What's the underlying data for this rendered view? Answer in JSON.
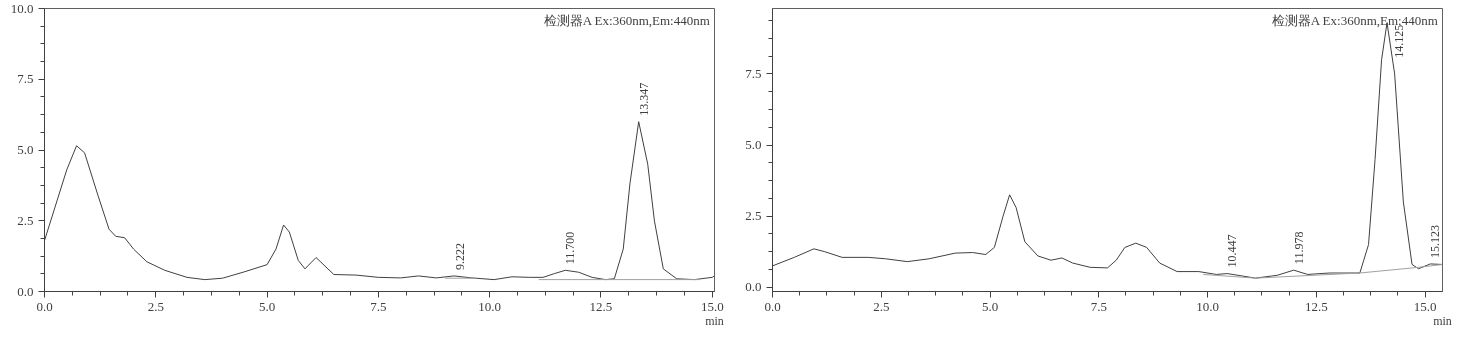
{
  "chart_data": [
    {
      "type": "line",
      "subtitle": "检测器A Ex:360nm,Em:440nm",
      "xlabel": "min",
      "xlim": [
        0,
        15.05
      ],
      "ylim": [
        0,
        10
      ],
      "xticks": [
        {
          "value": 0,
          "label": "0.0"
        },
        {
          "value": 2.5,
          "label": "2.5"
        },
        {
          "value": 5,
          "label": "5.0"
        },
        {
          "value": 7.5,
          "label": "7.5"
        },
        {
          "value": 10,
          "label": "10.0"
        },
        {
          "value": 12.5,
          "label": "12.5"
        },
        {
          "value": 15,
          "label": "15.0"
        }
      ],
      "yticks": [
        {
          "value": 0,
          "label": "0.0"
        },
        {
          "value": 2.5,
          "label": "2.5"
        },
        {
          "value": 5,
          "label": "5.0"
        },
        {
          "value": 7.5,
          "label": "7.5"
        },
        {
          "value": 10,
          "label": "10.0"
        }
      ],
      "series": [
        {
          "color": "#404040",
          "x": [
            0,
            0.3,
            0.5,
            0.72,
            0.9,
            1.2,
            1.45,
            1.6,
            1.8,
            2.0,
            2.3,
            2.7,
            3.2,
            3.6,
            4.0,
            4.5,
            5.0,
            5.2,
            5.37,
            5.5,
            5.7,
            5.85,
            6.1,
            6.3,
            6.5,
            7.0,
            7.5,
            8.0,
            8.4,
            8.8,
            9.2,
            9.6,
            10.1,
            10.5,
            10.9,
            11.2,
            11.45,
            11.7,
            12.0,
            12.3,
            12.6,
            12.8,
            13.0,
            13.15,
            13.347,
            13.55,
            13.7,
            13.9,
            14.2,
            14.6,
            15.0,
            15.05
          ],
          "values": [
            1.8,
            3.3,
            4.3,
            5.15,
            4.9,
            3.4,
            2.2,
            1.95,
            1.9,
            1.5,
            1.05,
            0.75,
            0.5,
            0.42,
            0.47,
            0.7,
            0.95,
            1.5,
            2.35,
            2.1,
            1.1,
            0.8,
            1.2,
            0.9,
            0.6,
            0.58,
            0.5,
            0.48,
            0.55,
            0.48,
            0.55,
            0.48,
            0.42,
            0.52,
            0.5,
            0.5,
            0.63,
            0.75,
            0.68,
            0.5,
            0.42,
            0.45,
            1.5,
            3.8,
            6.0,
            4.5,
            2.5,
            0.8,
            0.45,
            0.42,
            0.5,
            0.55
          ]
        },
        {
          "color": "#a0a0a0",
          "x": [
            9.0,
            9.7
          ],
          "values": [
            0.47,
            0.47
          ]
        },
        {
          "color": "#a0a0a0",
          "x": [
            11.1,
            14.7
          ],
          "values": [
            0.42,
            0.42
          ]
        }
      ],
      "annotations": [
        {
          "text": "9.222",
          "x": 9.222,
          "y": 0.55
        },
        {
          "text": "11.700",
          "x": 11.7,
          "y": 0.75
        },
        {
          "text": "13.347",
          "x": 13.347,
          "y": 6.0
        }
      ]
    },
    {
      "type": "line",
      "subtitle": "检测器A Ex:360nm,Em:440nm",
      "xlabel": "min",
      "xlim": [
        0,
        15.4
      ],
      "ylim": [
        -0.15,
        9.8
      ],
      "xticks": [
        {
          "value": 0,
          "label": "0.0"
        },
        {
          "value": 2.5,
          "label": "2.5"
        },
        {
          "value": 5,
          "label": "5.0"
        },
        {
          "value": 7.5,
          "label": "7.5"
        },
        {
          "value": 10,
          "label": "10.0"
        },
        {
          "value": 12.5,
          "label": "12.5"
        },
        {
          "value": 15,
          "label": "15.0"
        }
      ],
      "yticks": [
        {
          "value": 0,
          "label": "0.0"
        },
        {
          "value": 2.5,
          "label": "2.5"
        },
        {
          "value": 5,
          "label": "5.0"
        },
        {
          "value": 7.5,
          "label": "7.5"
        }
      ],
      "series": [
        {
          "color": "#404040",
          "x": [
            0,
            0.5,
            0.95,
            1.2,
            1.6,
            2.2,
            2.6,
            3.1,
            3.6,
            4.2,
            4.6,
            4.9,
            5.1,
            5.3,
            5.45,
            5.6,
            5.8,
            6.1,
            6.4,
            6.65,
            6.9,
            7.3,
            7.7,
            7.9,
            8.1,
            8.35,
            8.6,
            8.9,
            9.3,
            9.8,
            10.2,
            10.45,
            10.7,
            11.1,
            11.6,
            11.98,
            12.3,
            12.8,
            13.5,
            13.7,
            13.85,
            14.0,
            14.125,
            14.3,
            14.5,
            14.7,
            14.85,
            15.12,
            15.4
          ],
          "values": [
            0.75,
            1.05,
            1.35,
            1.25,
            1.05,
            1.05,
            1.0,
            0.9,
            1.0,
            1.2,
            1.22,
            1.15,
            1.4,
            2.5,
            3.25,
            2.8,
            1.6,
            1.1,
            0.95,
            1.03,
            0.85,
            0.7,
            0.68,
            0.95,
            1.4,
            1.55,
            1.4,
            0.85,
            0.55,
            0.55,
            0.45,
            0.48,
            0.42,
            0.32,
            0.42,
            0.6,
            0.45,
            0.5,
            0.5,
            1.5,
            4.5,
            8.0,
            9.3,
            7.5,
            3.0,
            0.8,
            0.65,
            0.82,
            0.8
          ]
        },
        {
          "color": "#a0a0a0",
          "x": [
            9.9,
            11.1,
            13.5,
            14.85,
            15.4
          ],
          "values": [
            0.45,
            0.32,
            0.5,
            0.7,
            0.8
          ]
        }
      ],
      "annotations": [
        {
          "text": "10.447",
          "x": 10.447,
          "y": 0.48
        },
        {
          "text": "11.978",
          "x": 11.978,
          "y": 0.6
        },
        {
          "text": "14.125",
          "x": 14.125,
          "y": 9.3
        },
        {
          "text": "15.123",
          "x": 15.123,
          "y": 0.82
        }
      ]
    }
  ]
}
